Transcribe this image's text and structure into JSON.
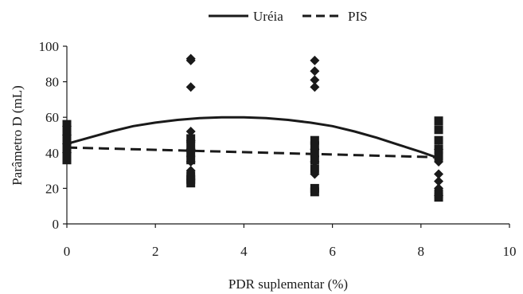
{
  "chart_data": {
    "type": "scatter",
    "xlabel": "PDR suplementar (%)",
    "ylabel": "Parâmetro D (mL)",
    "xlim": [
      0,
      10
    ],
    "ylim": [
      0,
      100
    ],
    "xticks": [
      0,
      2,
      4,
      6,
      8,
      10
    ],
    "yticks": [
      0,
      20,
      40,
      60,
      80,
      100
    ],
    "grid": false,
    "legend_position": "top-center",
    "series": [
      {
        "name": "Uréia",
        "kind": "line",
        "style": "solid",
        "x": [
          0,
          0.5,
          1,
          1.5,
          2,
          2.5,
          3,
          3.5,
          4,
          4.5,
          5,
          5.5,
          6,
          6.5,
          7,
          7.5,
          8,
          8.4
        ],
        "y": [
          45,
          48.5,
          52,
          55,
          57,
          58.5,
          59.5,
          60,
          60,
          59.5,
          58.5,
          57,
          55,
          52,
          48.5,
          44.5,
          40.5,
          37
        ]
      },
      {
        "name": "PIS",
        "kind": "line",
        "style": "dashed",
        "x": [
          0,
          8.4
        ],
        "y": [
          43,
          37.5
        ]
      },
      {
        "marker": "diamond",
        "kind": "points",
        "x": [
          0,
          0,
          0,
          0,
          2.8,
          2.8,
          2.8,
          2.8,
          2.8,
          2.8,
          2.8,
          2.8,
          5.6,
          5.6,
          5.6,
          5.6,
          5.6,
          5.6,
          5.6,
          8.4,
          8.4,
          8.4,
          8.4,
          8.4,
          8.4
        ],
        "y": [
          55,
          50,
          45,
          40,
          93,
          92,
          77,
          52,
          47,
          42,
          35,
          30,
          92,
          86,
          81,
          77,
          42,
          35,
          28,
          42,
          35,
          28,
          24,
          20,
          16
        ]
      },
      {
        "marker": "square",
        "kind": "points",
        "x": [
          0,
          0,
          0,
          0,
          0,
          0,
          0,
          0,
          2.8,
          2.8,
          2.8,
          2.8,
          2.8,
          2.8,
          2.8,
          5.6,
          5.6,
          5.6,
          5.6,
          5.6,
          5.6,
          5.6,
          8.4,
          8.4,
          8.4,
          8.4,
          8.4,
          8.4,
          8.4
        ],
        "y": [
          56,
          53,
          50,
          47,
          44,
          41,
          38,
          36,
          48,
          44,
          40,
          36,
          27,
          25,
          23,
          47,
          44,
          40,
          36,
          31,
          20,
          18,
          58,
          53,
          47,
          42,
          38,
          17,
          15
        ]
      }
    ]
  }
}
